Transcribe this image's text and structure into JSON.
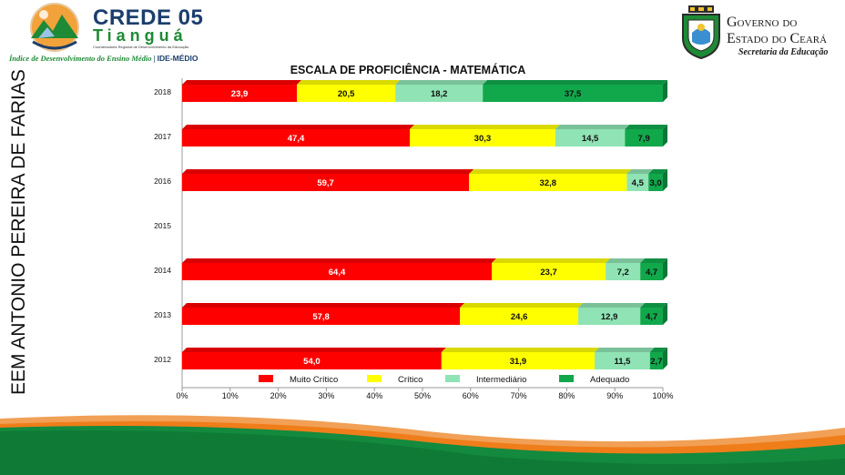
{
  "header": {
    "crede_title": "CREDE 05",
    "crede_city": "Tianguá",
    "crede_subtitle": "Coordenadoria Regional de Desenvolvimento da Educação",
    "tagline_left": "Índice de Desenvolvimento do Ensino Médio",
    "tagline_sep": "|",
    "tagline_right": "IDE-MÉDIO",
    "gov_line1": "Governo do",
    "gov_line2": "Estado do Ceará",
    "gov_secretaria": "Secretaria da Educação"
  },
  "side_title": "EEM ANTONIO PEREIRA DE FARIAS",
  "colors": {
    "muito_critico": "#ff0000",
    "critico": "#ffff00",
    "intermediario": "#8fe3b4",
    "adequado": "#11a84c",
    "footer_green": "#138a3e",
    "footer_orange": "#ef7d1a"
  },
  "chart_data": {
    "type": "bar",
    "orientation": "horizontal",
    "stacked": true,
    "title": "ESCALA DE PROFICIÊNCIA - MATEMÁTICA",
    "categories": [
      "2018",
      "2017",
      "2016",
      "2015",
      "2014",
      "2013",
      "2012"
    ],
    "series": [
      {
        "name": "Muito Crítico",
        "color": "#ff0000",
        "values": [
          23.9,
          47.4,
          59.7,
          null,
          64.4,
          57.8,
          54.0
        ]
      },
      {
        "name": "Crítico",
        "color": "#ffff00",
        "values": [
          20.5,
          30.3,
          32.8,
          null,
          23.7,
          24.6,
          31.9
        ]
      },
      {
        "name": "Intermediário",
        "color": "#8fe3b4",
        "values": [
          18.2,
          14.5,
          4.5,
          null,
          7.2,
          12.9,
          11.5
        ]
      },
      {
        "name": "Adequado",
        "color": "#11a84c",
        "values": [
          37.5,
          7.9,
          3.0,
          null,
          4.7,
          4.7,
          2.7
        ]
      }
    ],
    "xlim": [
      0,
      100
    ],
    "x_ticks": [
      "0%",
      "10%",
      "20%",
      "30%",
      "40%",
      "50%",
      "60%",
      "70%",
      "80%",
      "90%",
      "100%"
    ],
    "legend": "bottom",
    "grid": false
  }
}
